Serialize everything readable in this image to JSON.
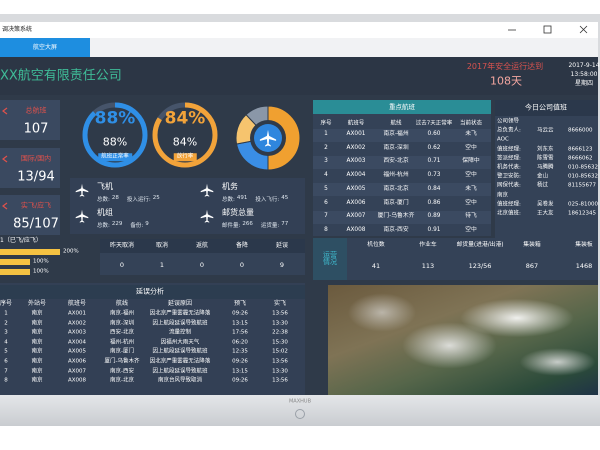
{
  "window": {
    "title": "调决策系统",
    "tab": "航空大屏"
  },
  "header": {
    "company": "XX航空有限责任公司",
    "safety_text": "2017年安全运行达到",
    "safety_days": "108天",
    "date": "2017-9-14",
    "time": "13:58:00",
    "weekday": "星期四"
  },
  "kpis": [
    {
      "label": "总航班",
      "value": 107
    },
    {
      "label": "国际/国内",
      "value": "13/94"
    },
    {
      "label": "实飞/应飞",
      "value": "85/107"
    }
  ],
  "gauges": [
    {
      "value": 88,
      "label": "88%",
      "caption": "航班正常率",
      "color": "#2f8fe6"
    },
    {
      "value": 84,
      "label": "84%",
      "caption": "放行率",
      "color": "#f2a33a"
    }
  ],
  "pie": {
    "values": [
      50,
      22,
      16,
      12
    ],
    "colors": [
      "#f0a030",
      "#3a8ee6",
      "#f6c46e",
      "#8a97a8"
    ]
  },
  "resources": [
    {
      "name": "飞机",
      "stats": [
        {
          "label": "总数:",
          "value": 28
        },
        {
          "label": "投入运行:",
          "value": 25
        }
      ]
    },
    {
      "name": "机组",
      "stats": [
        {
          "label": "总数:",
          "value": 229
        },
        {
          "label": "备份:",
          "value": 9
        }
      ]
    },
    {
      "name": "机务",
      "stats": [
        {
          "label": "总数:",
          "value": 491
        },
        {
          "label": "投入飞行:",
          "value": 45
        }
      ]
    },
    {
      "name": "邮货总量",
      "stats": [
        {
          "label": "邮件量:",
          "value": 266
        },
        {
          "label": "运货量:",
          "value": 77
        }
      ]
    }
  ],
  "progress": {
    "title": "1（已飞/应飞）",
    "color": "#f5c242",
    "bars": [
      {
        "value": 200,
        "label": "200%"
      },
      {
        "value": 100,
        "label": "100%"
      },
      {
        "value": 100,
        "label": "100%"
      }
    ]
  },
  "ops": {
    "headers": [
      "昨天取消",
      "取消",
      "返航",
      "备降",
      "延误"
    ],
    "values": [
      0,
      1,
      0,
      0,
      9
    ]
  },
  "delays": {
    "title": "延误分析",
    "headers": [
      "序号",
      "外站号",
      "航班号",
      "航线",
      "延误原因",
      "预飞",
      "实飞"
    ],
    "rows": [
      [
        1,
        "南京",
        "AX001",
        "南京-福州",
        "因北京严重雾霾无法降落",
        "09:26",
        "13:56"
      ],
      [
        2,
        "南京",
        "AX002",
        "南京-深圳",
        "因上航段延误导致航班",
        "13:15",
        "13:30"
      ],
      [
        3,
        "南京",
        "AX003",
        "西安-北京",
        "流量控制",
        "17:56",
        "22:38"
      ],
      [
        4,
        "南京",
        "AX004",
        "福州-杭州",
        "因福州大雨天气",
        "06:20",
        "15:30"
      ],
      [
        5,
        "南京",
        "AX005",
        "南京-厦门",
        "因上航段延误导致航班",
        "12:35",
        "15:02"
      ],
      [
        6,
        "南京",
        "AX006",
        "厦门-乌鲁木齐",
        "因北京严重雾霾无法降落",
        "09:26",
        "13:56"
      ],
      [
        7,
        "南京",
        "AX007",
        "南京-西安",
        "因上航段延误导致航班",
        "13:15",
        "13:30"
      ],
      [
        8,
        "南京",
        "AX008",
        "南京-北京",
        "南京台风导致取消",
        "09:26",
        "13:56"
      ]
    ]
  },
  "key_flights": {
    "title": "重点航班",
    "headers": [
      "序号",
      "航班号",
      "航线",
      "过去7天正常率",
      "当前状态"
    ],
    "rows": [
      [
        1,
        "AX001",
        "南京-福州",
        "0.60",
        "未飞"
      ],
      [
        2,
        "AX002",
        "南京-深圳",
        "0.62",
        "空中"
      ],
      [
        3,
        "AX003",
        "西安-北京",
        "0.71",
        "保障中"
      ],
      [
        4,
        "AX004",
        "福州-杭州",
        "0.73",
        "空中"
      ],
      [
        5,
        "AX005",
        "南京-北京",
        "0.84",
        "未飞"
      ],
      [
        6,
        "AX006",
        "南京-厦门",
        "0.86",
        "空中"
      ],
      [
        7,
        "AX007",
        "厦门-乌鲁木齐",
        "0.89",
        "待飞"
      ],
      [
        8,
        "AX008",
        "南京-西安",
        "0.91",
        "空中"
      ]
    ]
  },
  "duty": {
    "title": "今日公司值班",
    "lines": [
      [
        "公司领导"
      ],
      [
        "总负责人:",
        "马云云",
        "8666000"
      ],
      [
        "AOC"
      ],
      [
        "值班经理:",
        "刘东东",
        "8666123"
      ],
      [
        "签派经理:",
        "陈雪雪",
        "8666062"
      ],
      [
        "机务代表:",
        "马腾腾",
        "010-85632"
      ],
      [
        "警卫安防:",
        "金山",
        "010-85632"
      ],
      [
        "网保代表:",
        "杨过",
        "81155677"
      ],
      [
        "南京"
      ],
      [
        "值班经理:",
        "吴卷发",
        "025-81000"
      ],
      [
        "北京值班:",
        "王大友",
        "18612345"
      ]
    ]
  },
  "stats": {
    "title": "运营情况",
    "headers": [
      "机位数",
      "作业车",
      "邮货量(进港/出港)",
      "集装箱",
      "集装板"
    ],
    "values": [
      41,
      113,
      "123/56",
      867,
      1468
    ]
  },
  "brand": "MAXHUB"
}
